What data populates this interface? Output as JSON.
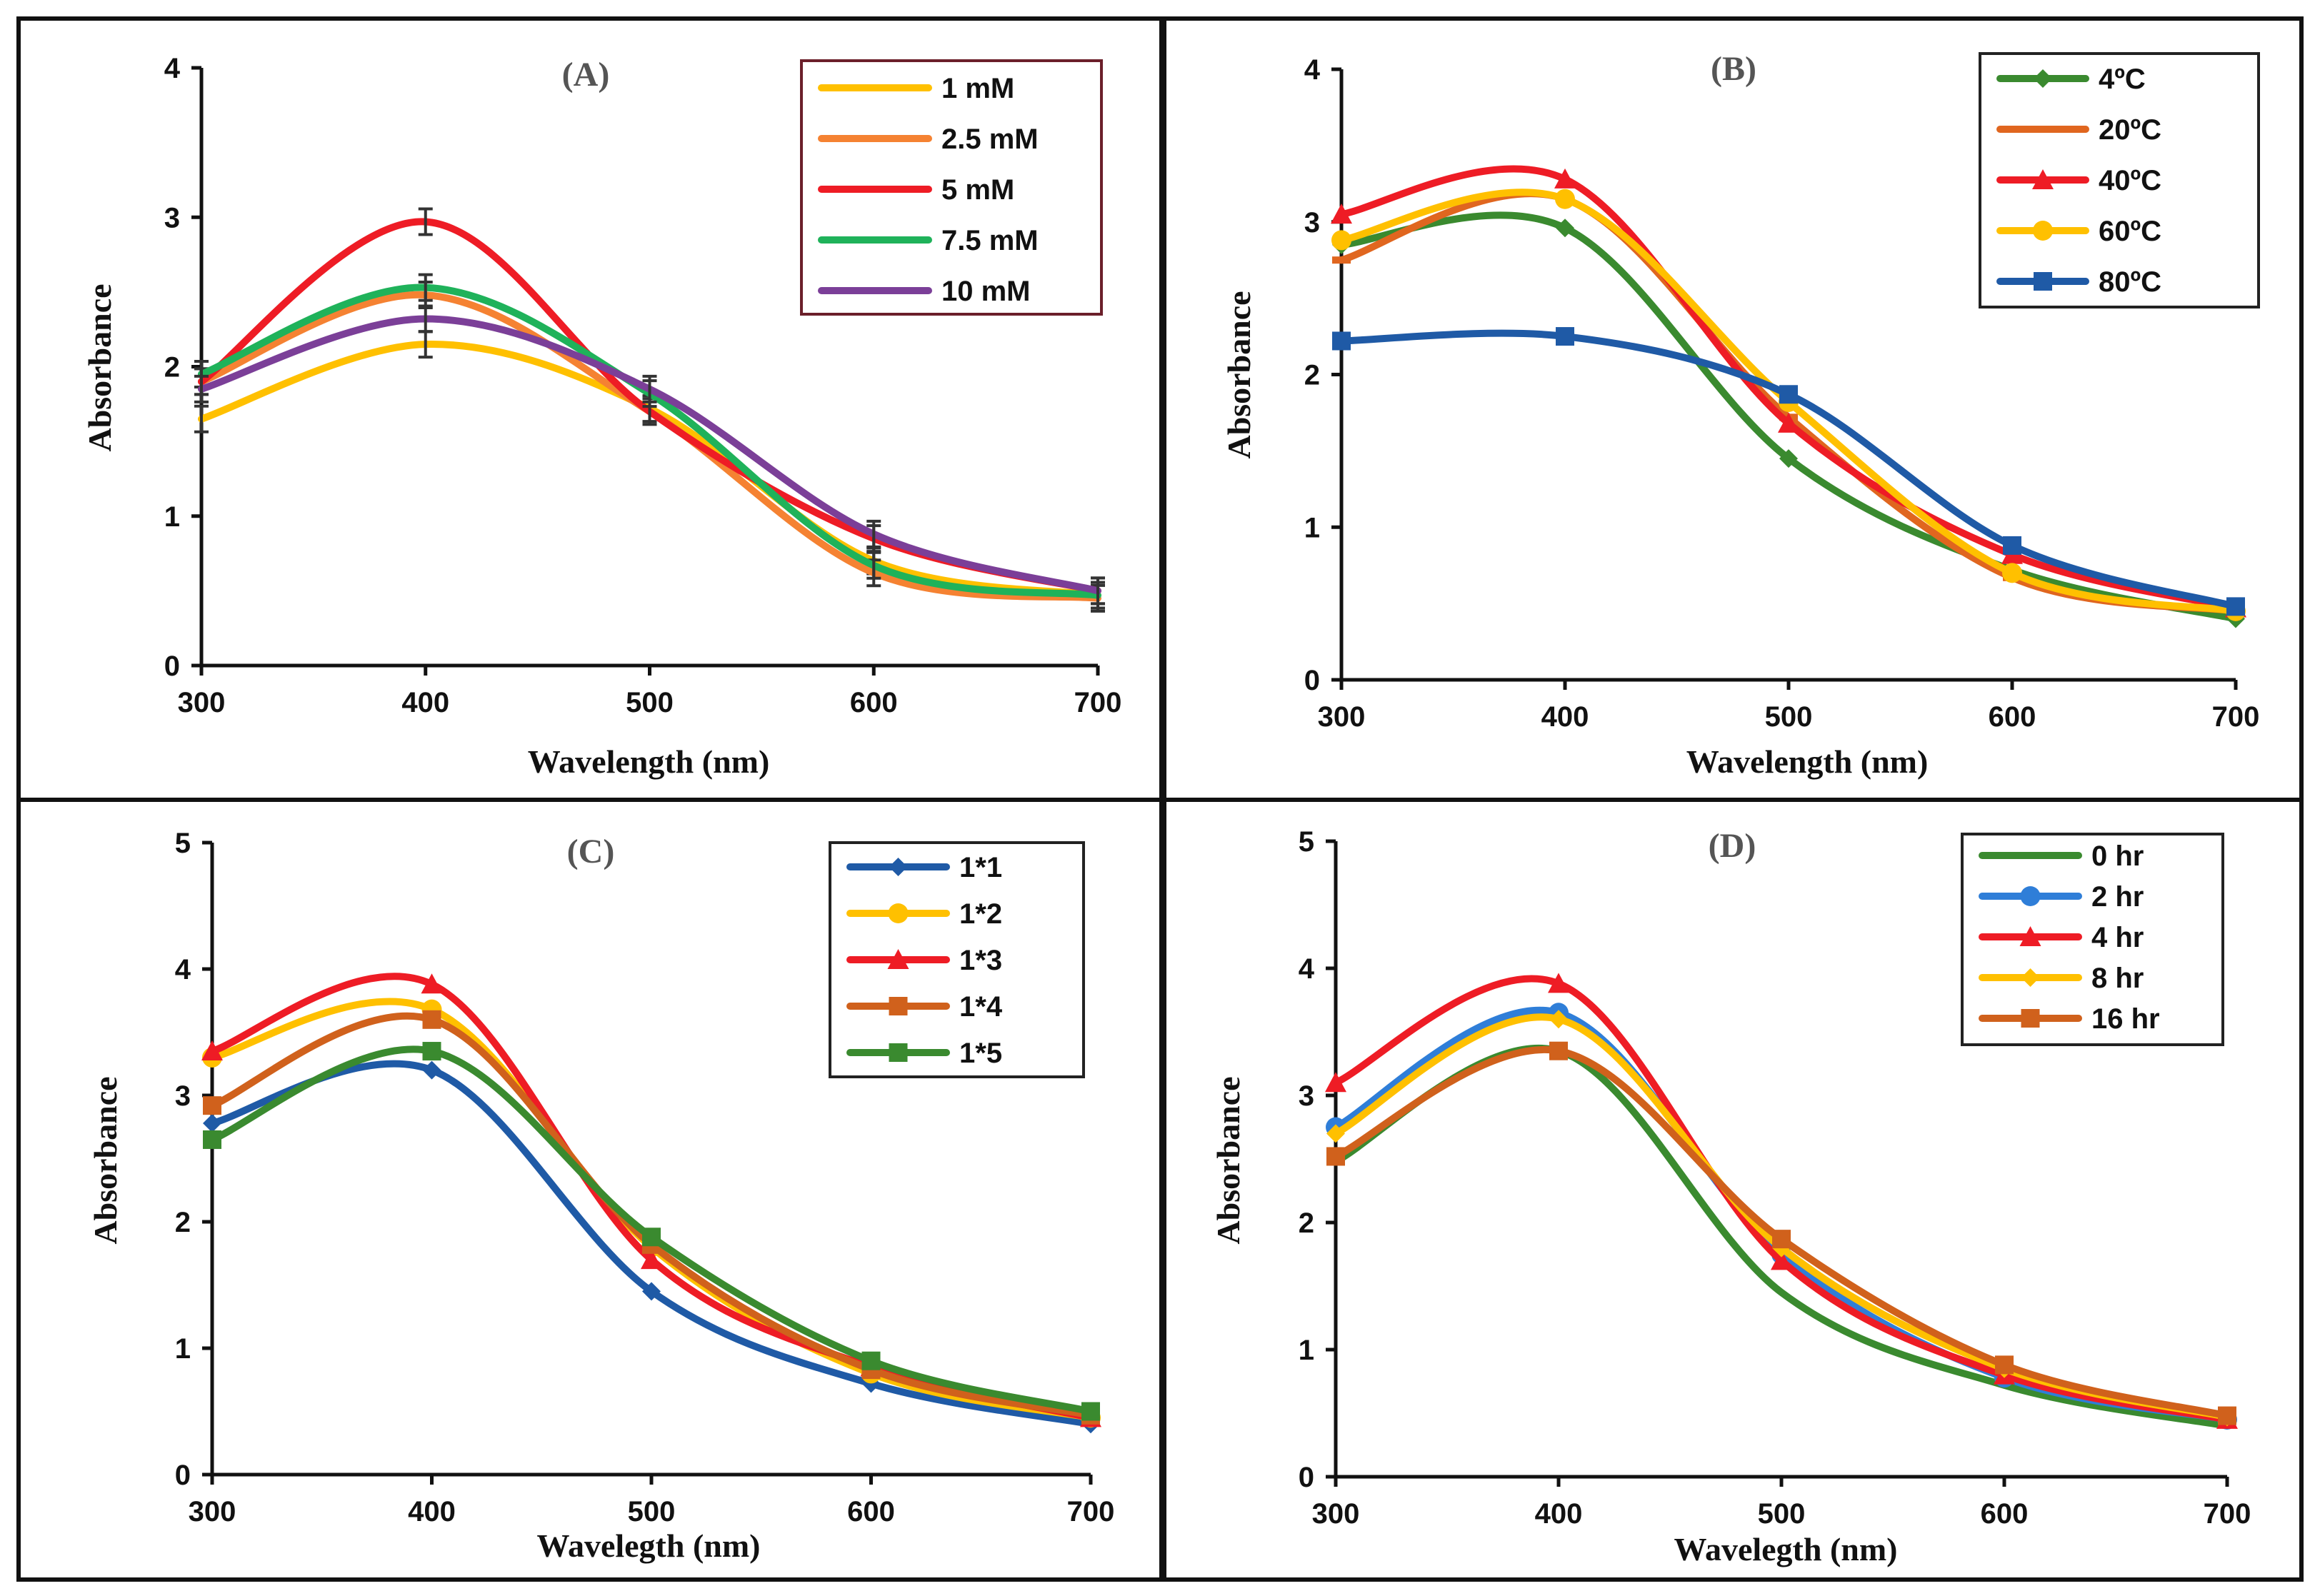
{
  "chart_data": [
    {
      "type": "line",
      "panel": "(A)",
      "title": "(A)",
      "xlabel": "Wavelength (nm)",
      "ylabel": "Absorbance",
      "xlim": [
        300,
        700
      ],
      "ylim": [
        0,
        4
      ],
      "xticks": [
        "300",
        "400",
        "500",
        "600",
        "700"
      ],
      "yticks": [
        "0",
        "1",
        "2",
        "3",
        "4"
      ],
      "x": [
        300,
        400,
        500,
        600,
        700
      ],
      "markers": false,
      "error_bars": true,
      "legend_position": "top-right",
      "series": [
        {
          "name": "1 mM",
          "color": "#ffc000",
          "values": [
            1.65,
            2.15,
            1.72,
            0.7,
            0.47
          ]
        },
        {
          "name": "2.5 mM",
          "color": "#f58232",
          "values": [
            1.9,
            2.48,
            1.7,
            0.62,
            0.45
          ]
        },
        {
          "name": "5 mM",
          "color": "#ee1c25",
          "values": [
            1.9,
            2.97,
            1.7,
            0.85,
            0.5
          ]
        },
        {
          "name": "7.5 mM",
          "color": "#1fb25a",
          "values": [
            1.95,
            2.53,
            1.82,
            0.67,
            0.47
          ]
        },
        {
          "name": "10 mM",
          "color": "#7b3f98",
          "values": [
            1.85,
            2.32,
            1.85,
            0.88,
            0.5
          ]
        }
      ]
    },
    {
      "type": "line",
      "panel": "(B)",
      "title": "(B)",
      "xlabel": "Wavelength (nm)",
      "ylabel": "Absorbance",
      "xlim": [
        300,
        700
      ],
      "ylim": [
        0,
        4
      ],
      "xticks": [
        "300",
        "400",
        "500",
        "600",
        "700"
      ],
      "yticks": [
        "0",
        "1",
        "2",
        "3",
        "4"
      ],
      "x": [
        300,
        400,
        500,
        600,
        700
      ],
      "markers": true,
      "error_bars": false,
      "legend_position": "top-right",
      "series": [
        {
          "name": "4ºC",
          "color": "#3a8a2f",
          "marker": "diamond",
          "values": [
            2.85,
            2.96,
            1.45,
            0.72,
            0.4
          ]
        },
        {
          "name": "20ºC",
          "color": "#e0661f",
          "marker": "dash",
          "values": [
            2.75,
            3.15,
            1.72,
            0.67,
            0.45
          ]
        },
        {
          "name": "40ºC",
          "color": "#ee1c25",
          "marker": "triangle",
          "values": [
            3.05,
            3.28,
            1.68,
            0.82,
            0.47
          ]
        },
        {
          "name": "60ºC",
          "color": "#ffc000",
          "marker": "circle",
          "values": [
            2.88,
            3.15,
            1.82,
            0.7,
            0.45
          ]
        },
        {
          "name": "80ºC",
          "color": "#1f5aa6",
          "marker": "square",
          "values": [
            2.22,
            2.25,
            1.87,
            0.88,
            0.48
          ]
        }
      ]
    },
    {
      "type": "line",
      "panel": "(C)",
      "title": "(C)",
      "xlabel": "Wavelegth (nm)",
      "ylabel": "Absorbance",
      "xlim": [
        300,
        700
      ],
      "ylim": [
        0,
        5
      ],
      "xticks": [
        "300",
        "400",
        "500",
        "600",
        "700"
      ],
      "yticks": [
        "0",
        "1",
        "2",
        "3",
        "4",
        "5"
      ],
      "x": [
        300,
        400,
        500,
        600,
        700
      ],
      "markers": true,
      "error_bars": false,
      "legend_position": "top-right",
      "series": [
        {
          "name": "1*1",
          "color": "#1f5aa6",
          "marker": "diamond",
          "values": [
            2.78,
            3.2,
            1.45,
            0.72,
            0.4
          ]
        },
        {
          "name": "1*2",
          "color": "#ffc000",
          "marker": "circle",
          "values": [
            3.3,
            3.68,
            1.8,
            0.8,
            0.45
          ]
        },
        {
          "name": "1*3",
          "color": "#ee1c25",
          "marker": "triangle",
          "values": [
            3.35,
            3.88,
            1.7,
            0.85,
            0.45
          ]
        },
        {
          "name": "1*4",
          "color": "#d0611c",
          "marker": "square",
          "values": [
            2.92,
            3.6,
            1.82,
            0.83,
            0.47
          ]
        },
        {
          "name": "1*5",
          "color": "#3a8a2f",
          "marker": "square",
          "values": [
            2.65,
            3.35,
            1.88,
            0.9,
            0.5
          ]
        }
      ]
    },
    {
      "type": "line",
      "panel": "(D)",
      "title": "(D)",
      "xlabel": "Wavelegth (nm)",
      "ylabel": "Absorbance",
      "xlim": [
        300,
        700
      ],
      "ylim": [
        0,
        5
      ],
      "xticks": [
        "300",
        "400",
        "500",
        "600",
        "700"
      ],
      "yticks": [
        "0",
        "1",
        "2",
        "3",
        "4",
        "5"
      ],
      "x": [
        300,
        400,
        500,
        600,
        700
      ],
      "markers": true,
      "error_bars": false,
      "legend_position": "top-right",
      "series": [
        {
          "name": "0 hr",
          "color": "#3a8a2f",
          "marker": "none",
          "values": [
            2.48,
            3.35,
            1.45,
            0.72,
            0.4
          ]
        },
        {
          "name": "2 hr",
          "color": "#2f7ed8",
          "marker": "circle",
          "values": [
            2.75,
            3.65,
            1.75,
            0.78,
            0.45
          ]
        },
        {
          "name": "4 hr",
          "color": "#ee1c25",
          "marker": "triangle",
          "values": [
            3.1,
            3.88,
            1.7,
            0.8,
            0.45
          ]
        },
        {
          "name": "8 hr",
          "color": "#ffc000",
          "marker": "diamond",
          "values": [
            2.7,
            3.6,
            1.8,
            0.85,
            0.47
          ]
        },
        {
          "name": "16 hr",
          "color": "#d0611c",
          "marker": "square",
          "values": [
            2.52,
            3.35,
            1.87,
            0.88,
            0.48
          ]
        }
      ]
    }
  ]
}
